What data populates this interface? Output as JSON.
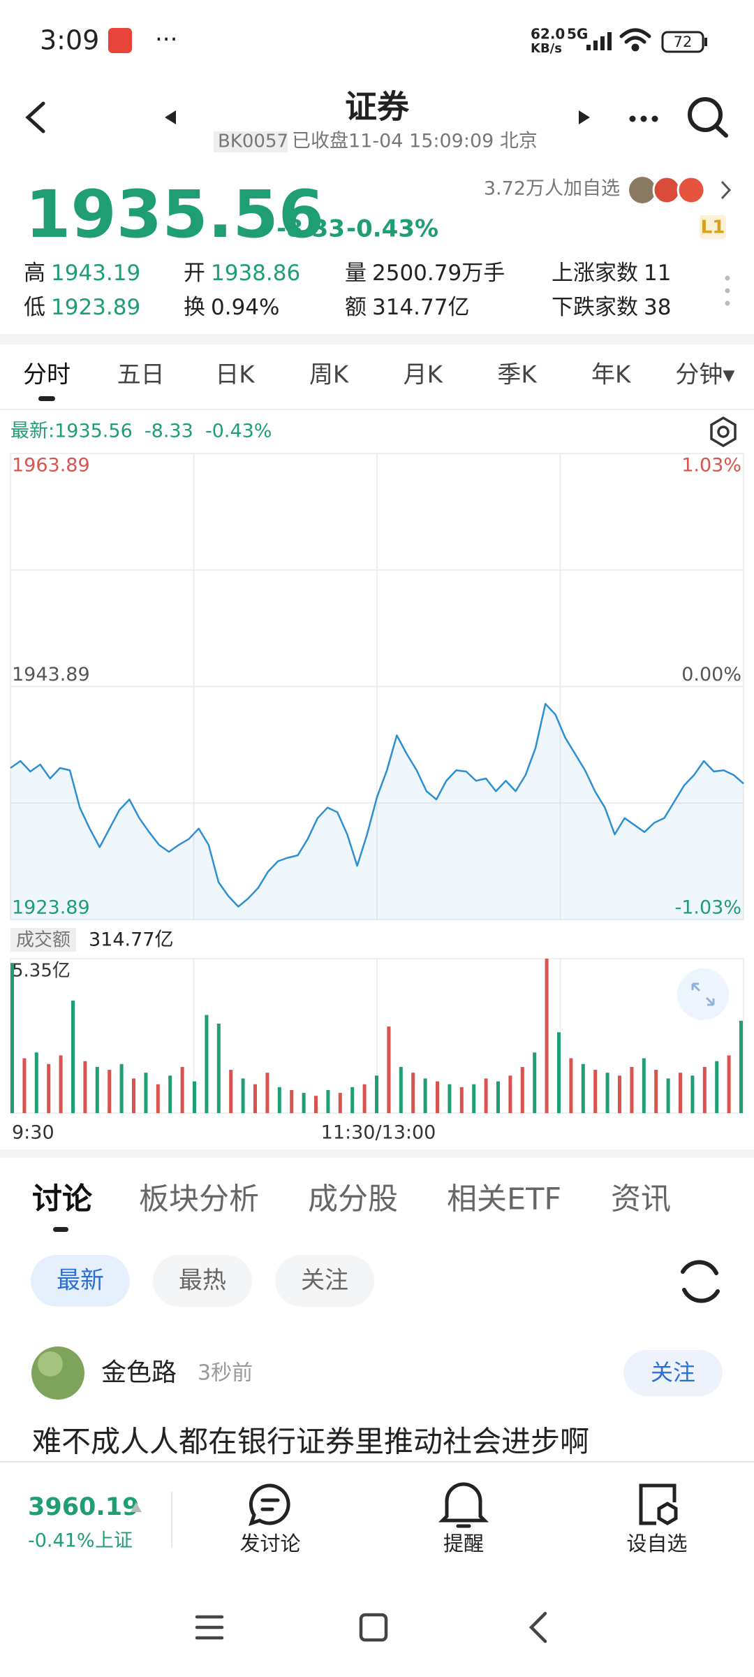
{
  "status_bar": {
    "time": "3:09",
    "more": "···",
    "network_speed": "62.0",
    "speed_unit": "KB/s",
    "network": "5G",
    "battery": "72"
  },
  "header": {
    "title": "证券",
    "code": "BK0057",
    "status": "已收盘11-04 15:09:09 北京"
  },
  "quote": {
    "price": "1935.56",
    "change": "-8.33",
    "change_pct": "-0.43%",
    "followers": "3.72万人加自选",
    "level": "L1"
  },
  "stats": [
    {
      "label": "高",
      "value": "1943.19",
      "color": "#1f9e74"
    },
    {
      "label": "开",
      "value": "1938.86",
      "color": "#1f9e74"
    },
    {
      "label": "量",
      "value": "2500.79万手",
      "color": "#222222"
    },
    {
      "label": "上涨家数",
      "value": "11",
      "color": "#222222"
    },
    {
      "label": "低",
      "value": "1923.89",
      "color": "#1f9e74"
    },
    {
      "label": "换",
      "value": "0.94%",
      "color": "#222222"
    },
    {
      "label": "额",
      "value": "314.77亿",
      "color": "#222222"
    },
    {
      "label": "下跌家数",
      "value": "38",
      "color": "#222222"
    }
  ],
  "tabs": [
    "分时",
    "五日",
    "日K",
    "周K",
    "月K",
    "季K",
    "年K",
    "分钟▾"
  ],
  "chart_header": "最新:1935.56  -8.33  -0.43%",
  "chart_data": [
    {
      "type": "line",
      "color": "#2b8fd1",
      "values": [
        1936.9,
        1937.5,
        1936.6,
        1937.2,
        1936.0,
        1936.9,
        1936.7,
        1933.5,
        1931.7,
        1930.1,
        1931.7,
        1933.3,
        1934.2,
        1932.6,
        1931.4,
        1930.3,
        1929.7,
        1930.3,
        1930.8,
        1931.7,
        1930.3,
        1927.1,
        1925.9,
        1925.0,
        1925.7,
        1926.6,
        1928.0,
        1928.9,
        1929.2,
        1929.4,
        1930.8,
        1932.6,
        1933.5,
        1933.1,
        1931.2,
        1928.5,
        1931.2,
        1934.4,
        1936.7,
        1939.7,
        1938.1,
        1936.7,
        1934.9,
        1934.2,
        1935.8,
        1936.7,
        1936.6,
        1935.8,
        1936.0,
        1934.9,
        1935.8,
        1934.9,
        1936.3,
        1938.6,
        1942.4,
        1941.5,
        1939.5,
        1938.1,
        1936.7,
        1934.9,
        1933.5,
        1931.2,
        1932.6,
        1932.0,
        1931.4,
        1932.2,
        1932.6,
        1934.0,
        1935.4,
        1936.3,
        1937.5,
        1936.6,
        1936.7,
        1936.3,
        1935.56
      ],
      "ylim": [
        1923.89,
        1963.89
      ],
      "yticks": [
        1923.89,
        1943.89,
        1963.89
      ],
      "y2lim": [
        -1.03,
        1.03
      ],
      "y2ticks": [
        {
          "value": -1.03,
          "label": "-1.03%"
        },
        {
          "value": 0,
          "label": "0.00%"
        },
        {
          "value": 1.03,
          "label": "1.03%"
        }
      ],
      "x_labels": [
        "9:30",
        "11:30/13:00"
      ],
      "grid": true
    },
    {
      "type": "bar",
      "title": "成交额",
      "subtitle": "314.77亿",
      "values": [
        5.2,
        1.9,
        2.1,
        1.7,
        2.0,
        3.9,
        1.8,
        1.6,
        1.5,
        1.7,
        1.2,
        1.4,
        1.0,
        1.3,
        1.6,
        1.1,
        3.4,
        3.1,
        1.5,
        1.2,
        1.0,
        1.4,
        0.9,
        0.8,
        0.7,
        0.6,
        0.8,
        0.7,
        0.9,
        1.0,
        1.3,
        3.0,
        1.6,
        1.4,
        1.2,
        1.1,
        1.0,
        0.9,
        1.0,
        1.2,
        1.1,
        1.3,
        1.6,
        2.1,
        5.35,
        2.8,
        1.9,
        1.7,
        1.5,
        1.4,
        1.3,
        1.6,
        1.9,
        1.5,
        1.2,
        1.4,
        1.3,
        1.6,
        1.8,
        2.0,
        3.2
      ],
      "colors": [
        "#1f9e74",
        "#d9534f",
        "#1f9e74",
        "#d9534f",
        "#d9534f",
        "#1f9e74",
        "#d9534f",
        "#1f9e74",
        "#d9534f",
        "#1f9e74",
        "#d9534f",
        "#1f9e74",
        "#d9534f",
        "#1f9e74",
        "#d9534f",
        "#1f9e74",
        "#1f9e74",
        "#1f9e74",
        "#d9534f",
        "#1f9e74",
        "#d9534f",
        "#d9534f",
        "#1f9e74",
        "#d9534f",
        "#1f9e74",
        "#d9534f",
        "#1f9e74",
        "#d9534f",
        "#1f9e74",
        "#d9534f",
        "#1f9e74",
        "#d9534f",
        "#1f9e74",
        "#d9534f",
        "#1f9e74",
        "#d9534f",
        "#1f9e74",
        "#d9534f",
        "#1f9e74",
        "#d9534f",
        "#1f9e74",
        "#d9534f",
        "#d9534f",
        "#1f9e74",
        "#d9534f",
        "#1f9e74",
        "#d9534f",
        "#1f9e74",
        "#d9534f",
        "#1f9e74",
        "#d9534f",
        "#d9534f",
        "#1f9e74",
        "#d9534f",
        "#1f9e74",
        "#d9534f",
        "#1f9e74",
        "#d9534f",
        "#1f9e74",
        "#d9534f",
        "#1f9e74"
      ],
      "ylim": [
        0,
        5.35
      ],
      "yticks": [
        {
          "value": 5.35,
          "label": "5.35亿"
        }
      ]
    }
  ],
  "discussion": {
    "tabs": [
      "讨论",
      "板块分析",
      "成分股",
      "相关ETF",
      "资讯"
    ],
    "filters": [
      "最新",
      "最热",
      "关注"
    ],
    "post": {
      "author": "金色路",
      "time": "3秒前",
      "follow": "关注",
      "text": "难不成人人都在银行证券里推动社会进步啊"
    }
  },
  "bottom_bar": {
    "index_value": "3960.19",
    "index_change": "-0.41%",
    "index_name": "上证",
    "actions": [
      "发讨论",
      "提醒",
      "设自选"
    ]
  }
}
